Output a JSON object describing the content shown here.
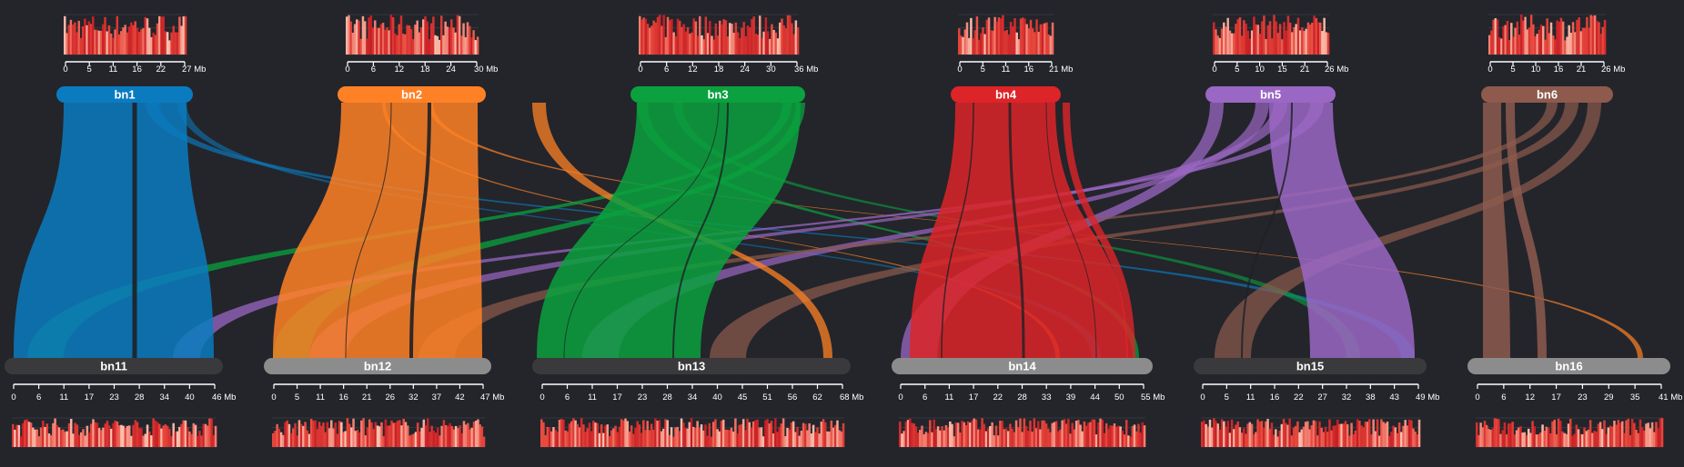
{
  "colors": {
    "background": "#23252b",
    "axis": "#ffffff",
    "label_text": "#ffffff",
    "density_high": "#d32f2f",
    "density_low": "#ffd0c0"
  },
  "top_chromosomes": [
    {
      "id": "bn1",
      "label": "bn1",
      "color": "#0b7bc0",
      "size": 27,
      "ticks": [
        "0",
        "5",
        "11",
        "16",
        "22",
        "27 Mb"
      ]
    },
    {
      "id": "bn2",
      "label": "bn2",
      "color": "#ff8126",
      "size": 30,
      "ticks": [
        "0",
        "6",
        "12",
        "18",
        "24",
        "30 Mb"
      ]
    },
    {
      "id": "bn3",
      "label": "bn3",
      "color": "#0aa13e",
      "size": 36,
      "ticks": [
        "0",
        "6",
        "12",
        "18",
        "24",
        "30",
        "36 Mb"
      ]
    },
    {
      "id": "bn4",
      "label": "bn4",
      "color": "#dd2428",
      "size": 21,
      "ticks": [
        "0",
        "5",
        "11",
        "16",
        "21 Mb"
      ]
    },
    {
      "id": "bn5",
      "label": "bn5",
      "color": "#9b67c4",
      "size": 26,
      "ticks": [
        "0",
        "5",
        "10",
        "15",
        "21",
        "26 Mb"
      ]
    },
    {
      "id": "bn6",
      "label": "bn6",
      "color": "#8d5a4d",
      "size": 26,
      "ticks": [
        "0",
        "5",
        "10",
        "16",
        "21",
        "26 Mb"
      ]
    }
  ],
  "bottom_chromosomes": [
    {
      "id": "bn11",
      "label": "bn11",
      "color": "#3a3a3d",
      "size": 46,
      "ticks": [
        "0",
        "6",
        "11",
        "17",
        "23",
        "28",
        "34",
        "40",
        "46 Mb"
      ]
    },
    {
      "id": "bn12",
      "label": "bn12",
      "color": "#8c8c8c",
      "size": 47,
      "ticks": [
        "0",
        "5",
        "11",
        "16",
        "21",
        "26",
        "32",
        "37",
        "42",
        "47 Mb"
      ]
    },
    {
      "id": "bn13",
      "label": "bn13",
      "color": "#3a3a3d",
      "size": 68,
      "ticks": [
        "0",
        "6",
        "11",
        "17",
        "23",
        "28",
        "34",
        "40",
        "45",
        "51",
        "56",
        "62",
        "68 Mb"
      ]
    },
    {
      "id": "bn14",
      "label": "bn14",
      "color": "#8c8c8c",
      "size": 55,
      "ticks": [
        "0",
        "6",
        "11",
        "17",
        "22",
        "28",
        "33",
        "39",
        "44",
        "50",
        "55 Mb"
      ]
    },
    {
      "id": "bn15",
      "label": "bn15",
      "color": "#3a3a3d",
      "size": 49,
      "ticks": [
        "0",
        "5",
        "11",
        "16",
        "22",
        "27",
        "32",
        "38",
        "43",
        "49 Mb"
      ]
    },
    {
      "id": "bn16",
      "label": "bn16",
      "color": "#8c8c8c",
      "size": 41,
      "ticks": [
        "0",
        "6",
        "12",
        "17",
        "23",
        "29",
        "35",
        "41 Mb"
      ]
    }
  ]
}
